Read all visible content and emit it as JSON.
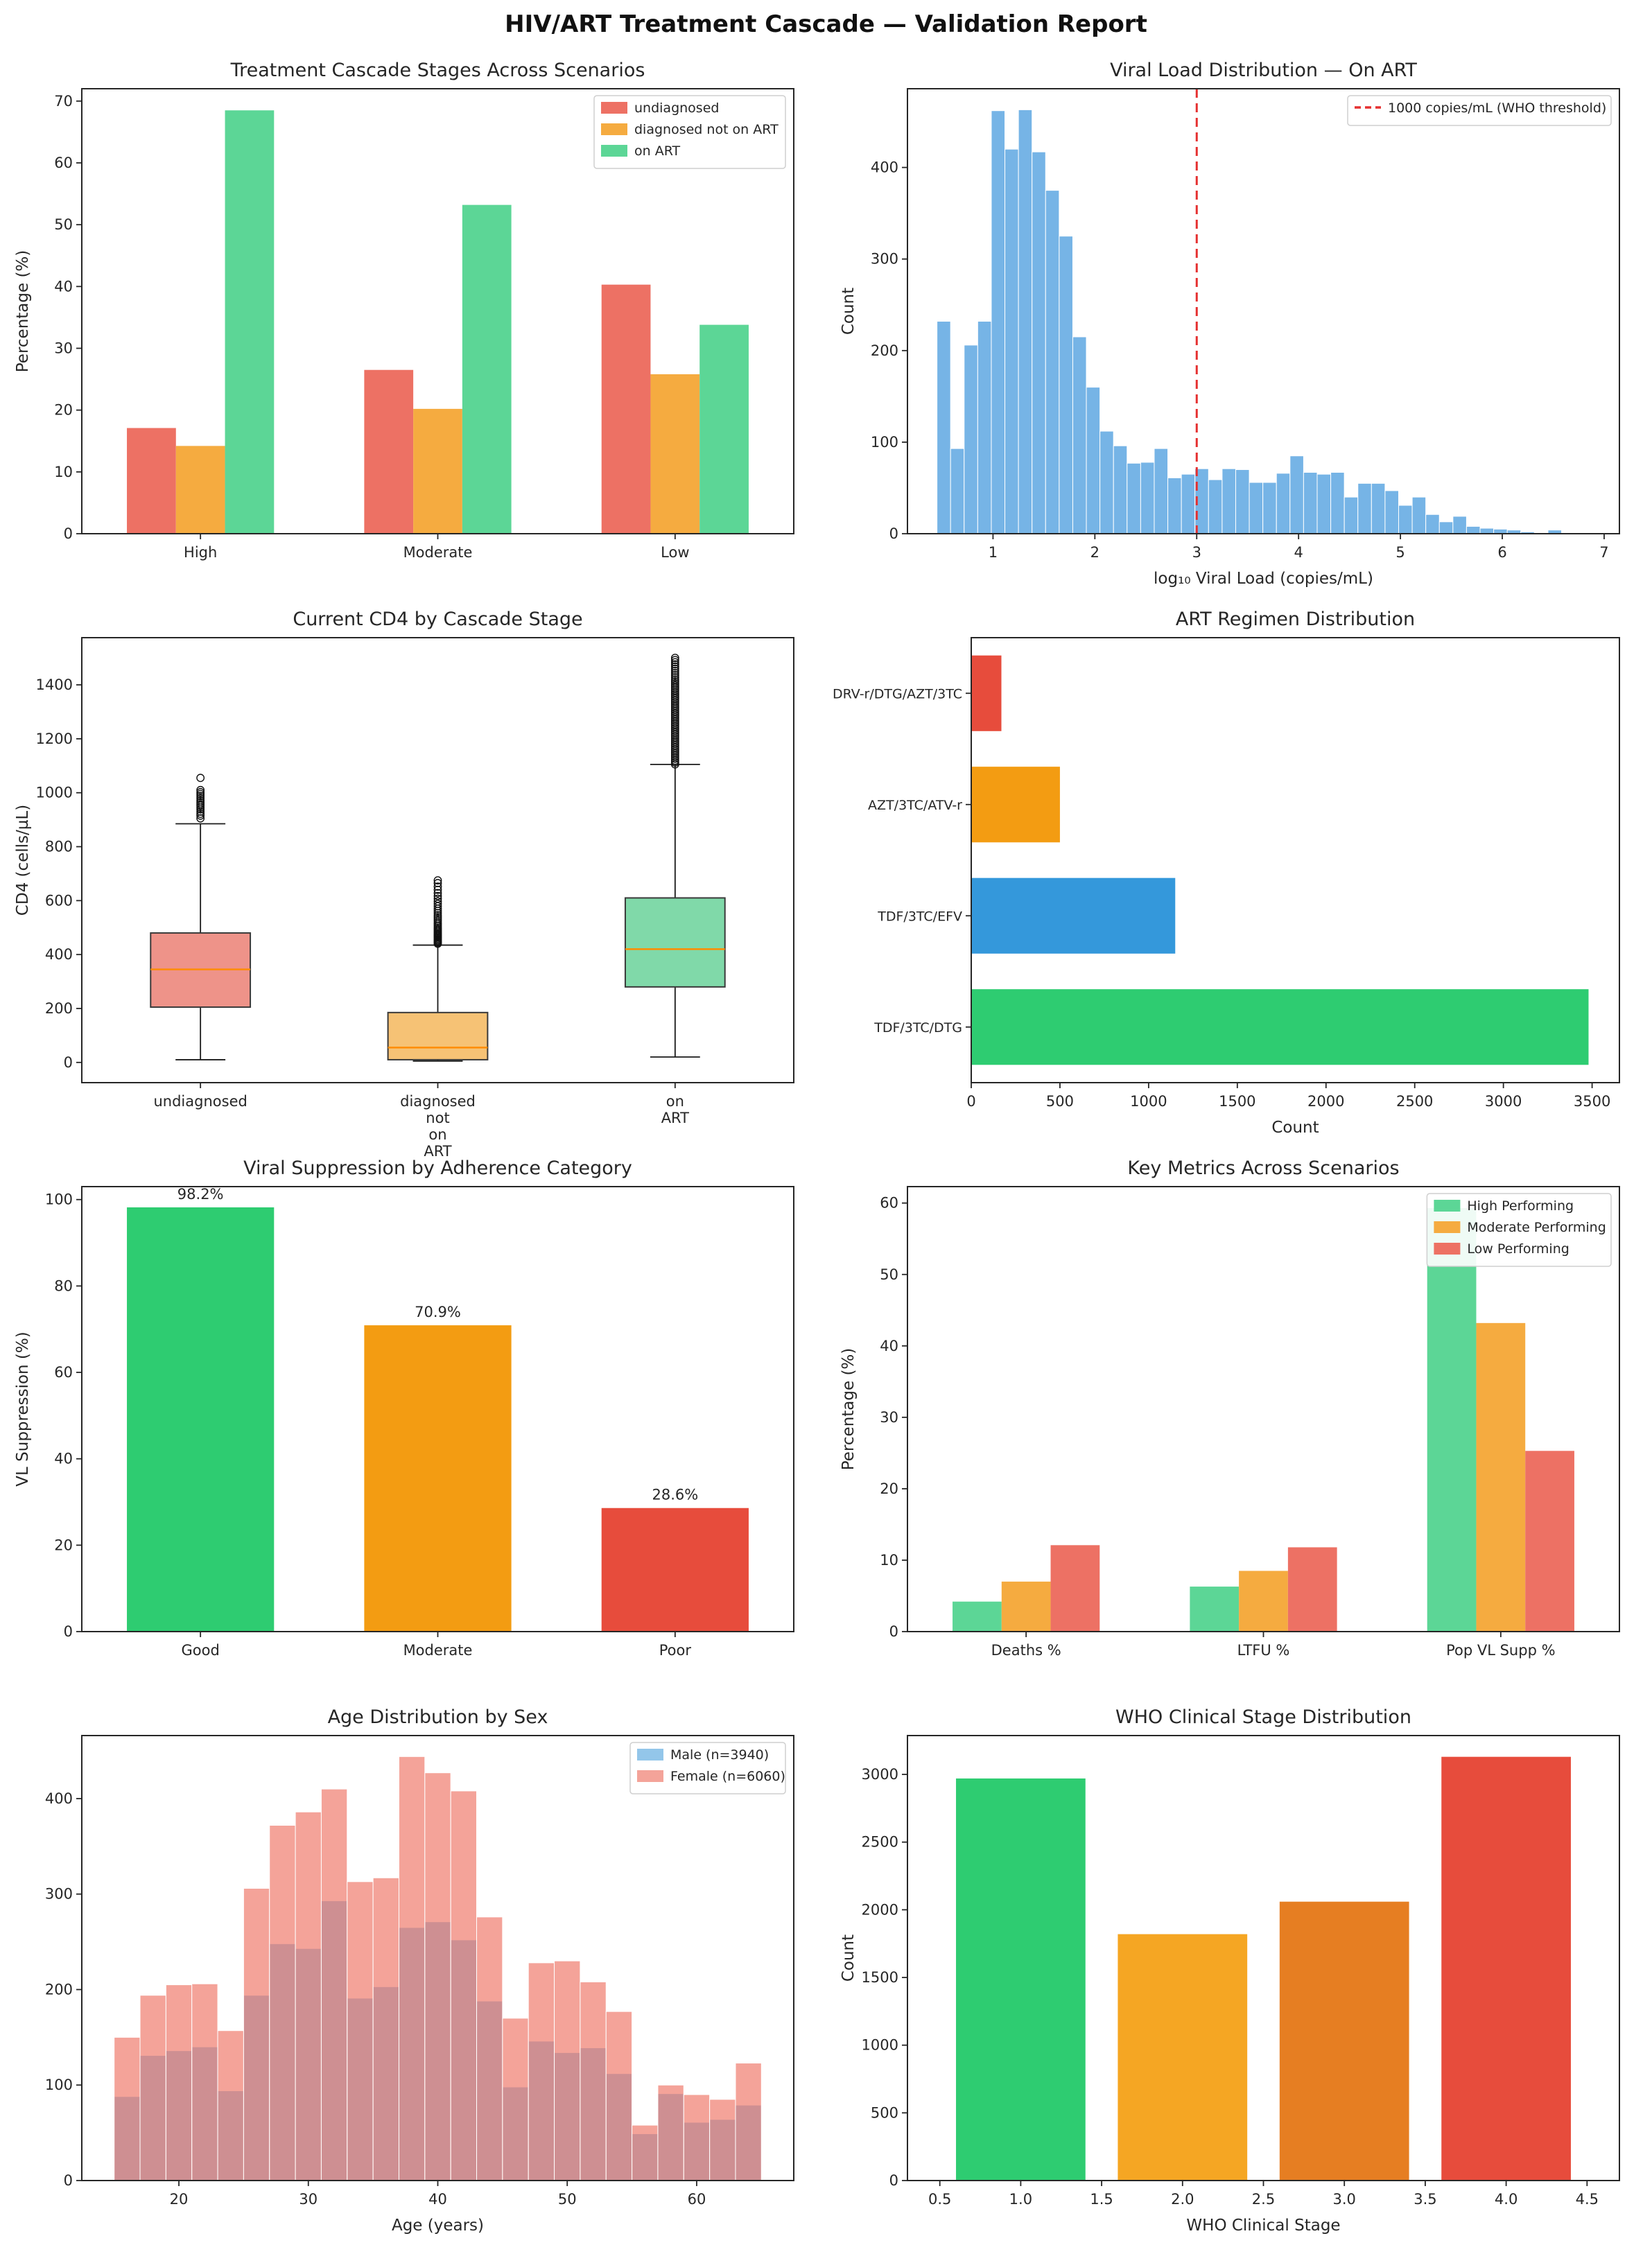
{
  "page": {
    "title": "HIV/ART Treatment Cascade — Validation Report"
  },
  "chart_data": [
    {
      "type": "grouped_bar",
      "title": "Treatment Cascade Stages Across Scenarios",
      "ylabel": "Percentage (%)",
      "categories": [
        "High",
        "Moderate",
        "Low"
      ],
      "series": [
        {
          "name": "undiagnosed",
          "color": "#ed7164",
          "values": [
            17.1,
            26.5,
            40.3
          ]
        },
        {
          "name": "diagnosed not on ART",
          "color": "#f5ab40",
          "values": [
            14.2,
            20.2,
            25.8
          ]
        },
        {
          "name": "on ART",
          "color": "#5cd696",
          "values": [
            68.5,
            53.2,
            33.8
          ]
        }
      ],
      "ylim": [
        0,
        72
      ],
      "yticks": [
        0,
        10,
        20,
        30,
        40,
        50,
        60,
        70
      ],
      "bar_group_frac": 0.62,
      "legend": {
        "position": "top-right"
      }
    },
    {
      "type": "histogram",
      "title": "Viral Load Distribution — On ART",
      "xlabel": "log₁₀ Viral Load (copies/mL)",
      "ylabel": "Count",
      "bin_start": 0.45,
      "bin_width": 0.1333,
      "counts": [
        232,
        93,
        206,
        232,
        462,
        420,
        463,
        417,
        375,
        325,
        215,
        160,
        112,
        96,
        77,
        78,
        93,
        61,
        65,
        71,
        59,
        71,
        70,
        56,
        56,
        66,
        85,
        67,
        65,
        67,
        40,
        55,
        55,
        47,
        31,
        40,
        21,
        13,
        19,
        8,
        6,
        5,
        4,
        2,
        1,
        4,
        0,
        0,
        1
      ],
      "color": "#76b4e6",
      "xlim": [
        0.16,
        7.15
      ],
      "ylim": [
        0,
        486
      ],
      "xticks": [
        1,
        2,
        3,
        4,
        5,
        6,
        7
      ],
      "yticks": [
        0,
        100,
        200,
        300,
        400
      ],
      "vline": {
        "x": 3,
        "color": "#e53030",
        "label": "1000 copies/mL (WHO threshold)"
      },
      "legend": {
        "position": "top-right"
      }
    },
    {
      "type": "boxplot",
      "title": "Current CD4 by Cascade Stage",
      "ylabel": "CD4 (cells/µL)",
      "ylim": [
        -75,
        1575
      ],
      "yticks": [
        0,
        200,
        400,
        600,
        800,
        1000,
        1200,
        1400
      ],
      "median_color": "#ff8c00",
      "boxes": [
        {
          "label": "undiagnosed",
          "fill": "#ee9389",
          "whislo": 10,
          "q1": 205,
          "med": 345,
          "q3": 480,
          "whishi": 885,
          "outliers": [
            905,
            915,
            922,
            930,
            938,
            945,
            952,
            958,
            965,
            972,
            980,
            988,
            995,
            1002,
            1010,
            1055
          ]
        },
        {
          "label": "diagnosed\nnot\non\nART",
          "fill": "#f6c275",
          "whislo": 5,
          "q1": 10,
          "med": 55,
          "q3": 185,
          "whishi": 435,
          "outliers": [
            440,
            444,
            448,
            452,
            456,
            460,
            464,
            468,
            472,
            476,
            480,
            485,
            490,
            495,
            500,
            506,
            512,
            518,
            525,
            532,
            539,
            546,
            554,
            562,
            570,
            579,
            588,
            597,
            607,
            617,
            628,
            640,
            652,
            665,
            675
          ]
        },
        {
          "label": "on\nART",
          "fill": "#80d9a9",
          "whislo": 20,
          "q1": 280,
          "med": 420,
          "q3": 610,
          "whishi": 1105,
          "outliers": [
            1105,
            1112,
            1119,
            1126,
            1133,
            1140,
            1147,
            1154,
            1161,
            1168,
            1175,
            1182,
            1189,
            1196,
            1203,
            1210,
            1217,
            1224,
            1231,
            1238,
            1245,
            1252,
            1259,
            1266,
            1273,
            1280,
            1287,
            1294,
            1301,
            1308,
            1315,
            1322,
            1329,
            1336,
            1343,
            1350,
            1357,
            1364,
            1371,
            1378,
            1385,
            1392,
            1399,
            1406,
            1413,
            1420,
            1428,
            1436,
            1444,
            1452,
            1460,
            1468,
            1476,
            1484,
            1492,
            1500
          ]
        }
      ]
    },
    {
      "type": "hbar",
      "title": "ART Regimen Distribution",
      "xlabel": "Count",
      "categories": [
        "DRV-r/DTG/AZT/3TC",
        "AZT/3TC/ATV-r",
        "TDF/3TC/EFV",
        "TDF/3TC/DTG"
      ],
      "values": [
        170,
        500,
        1150,
        3480
      ],
      "colors": [
        "#e74c3c",
        "#f39c12",
        "#3498db",
        "#2ecc71"
      ],
      "xlim": [
        0,
        3654
      ],
      "xticks": [
        0,
        500,
        1000,
        1500,
        2000,
        2500,
        3000,
        3500
      ],
      "bar_frac": 0.68,
      "margins": {
        "l": 210
      }
    },
    {
      "type": "labeled_bar",
      "title": "Viral Suppression by Adherence Category",
      "ylabel": "VL Suppression (%)",
      "categories": [
        "Good",
        "Moderate",
        "Poor"
      ],
      "values": [
        98.2,
        70.9,
        28.6
      ],
      "labels": [
        "98.2%",
        "70.9%",
        "28.6%"
      ],
      "colors": [
        "#2ecc71",
        "#f39c12",
        "#e74c3c"
      ],
      "ylim": [
        0,
        103
      ],
      "yticks": [
        0,
        20,
        40,
        60,
        80,
        100
      ],
      "bar_frac": 0.62
    },
    {
      "type": "grouped_bar",
      "title": "Key Metrics Across Scenarios",
      "ylabel": "Percentage (%)",
      "categories": [
        "Deaths %",
        "LTFU %",
        "Pop VL Supp %"
      ],
      "series": [
        {
          "name": "High Performing",
          "color": "#5cd696",
          "values": [
            4.2,
            6.3,
            59.3
          ]
        },
        {
          "name": "Moderate Performing",
          "color": "#f5ab40",
          "values": [
            7.0,
            8.5,
            43.2
          ]
        },
        {
          "name": "Low Performing",
          "color": "#ed7164",
          "values": [
            12.1,
            11.8,
            25.3
          ]
        }
      ],
      "ylim": [
        0,
        62.3
      ],
      "yticks": [
        0,
        10,
        20,
        30,
        40,
        50,
        60
      ],
      "bar_group_frac": 0.62,
      "legend": {
        "position": "top-right"
      }
    },
    {
      "type": "dual_histogram",
      "title": "Age Distribution by Sex",
      "xlabel": "Age (years)",
      "bin_start": 15,
      "bin_width": 2,
      "series": [
        {
          "name": "Male (n=3940)",
          "color": "#6fb3e3",
          "opacity": 0.75,
          "counts": [
            88,
            131,
            136,
            140,
            94,
            194,
            248,
            243,
            293,
            191,
            203,
            265,
            271,
            252,
            188,
            98,
            146,
            134,
            139,
            112,
            49,
            91,
            61,
            64,
            79
          ]
        },
        {
          "name": "Female (n=6060)",
          "color": "#ee7163",
          "opacity": 0.65,
          "counts": [
            150,
            194,
            205,
            206,
            157,
            306,
            372,
            386,
            410,
            313,
            317,
            444,
            427,
            408,
            276,
            170,
            228,
            230,
            208,
            177,
            58,
            100,
            90,
            85,
            123
          ]
        }
      ],
      "xlim": [
        12.5,
        67.5
      ],
      "ylim": [
        0,
        466
      ],
      "xticks": [
        20,
        30,
        40,
        50,
        60
      ],
      "yticks": [
        0,
        100,
        200,
        300,
        400
      ],
      "legend": {
        "position": "top-right"
      }
    },
    {
      "type": "bar_numeric",
      "title": "WHO Clinical Stage Distribution",
      "xlabel": "WHO Clinical Stage",
      "ylabel": "Count",
      "x": [
        1,
        2,
        3,
        4
      ],
      "values": [
        2970,
        1820,
        2060,
        3130
      ],
      "colors": [
        "#2ecc71",
        "#f5a623",
        "#e67e22",
        "#e74c3c"
      ],
      "bar_width": 0.8,
      "xlim": [
        0.3,
        4.7
      ],
      "ylim": [
        0,
        3287
      ],
      "xticks": [
        0.5,
        1.0,
        1.5,
        2.0,
        2.5,
        3.0,
        3.5,
        4.0,
        4.5
      ],
      "xtick_labels": [
        "0.5",
        "1.0",
        "1.5",
        "2.0",
        "2.5",
        "3.0",
        "3.5",
        "4.0",
        "4.5"
      ],
      "yticks": [
        0,
        500,
        1000,
        1500,
        2000,
        2500,
        3000
      ]
    }
  ]
}
